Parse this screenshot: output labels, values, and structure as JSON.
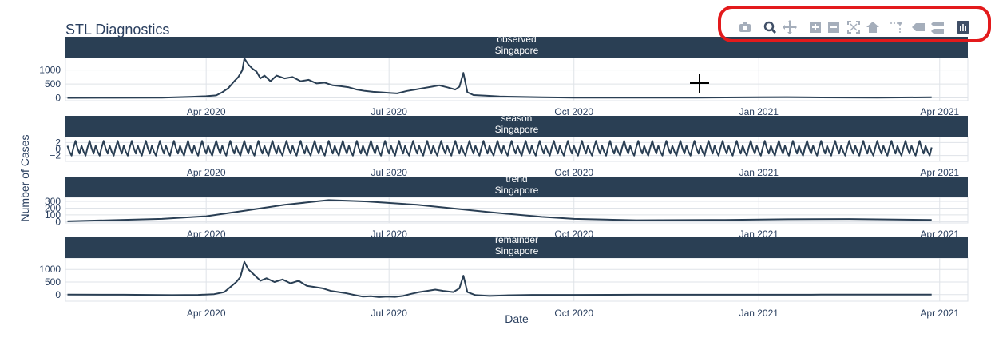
{
  "title": "STL Diagnostics",
  "colors": {
    "strip": "#2a3f54",
    "line": "#2a3f54",
    "grid": "#dfe3e8",
    "text": "#2a3f5f",
    "highlight": "#e31a1c",
    "icon": "#a5aebb",
    "icon_active": "#3f4e66"
  },
  "toolbar": [
    {
      "name": "camera-icon",
      "icon": "camera"
    },
    {
      "name": "zoom-icon",
      "icon": "zoom"
    },
    {
      "name": "pan-icon",
      "icon": "pan"
    },
    {
      "name": "zoom-in-icon",
      "icon": "zoom-in"
    },
    {
      "name": "zoom-out-icon",
      "icon": "zoom-out"
    },
    {
      "name": "autoscale-icon",
      "icon": "autoscale"
    },
    {
      "name": "home-icon",
      "icon": "home"
    },
    {
      "name": "spike-lines-icon",
      "icon": "spike"
    },
    {
      "name": "hover-closest-icon",
      "icon": "hover-closest"
    },
    {
      "name": "hover-compare-icon",
      "icon": "hover-compare"
    },
    {
      "name": "plotly-logo-icon",
      "icon": "logo"
    }
  ],
  "chart_data": {
    "type": "line",
    "title": "STL Diagnostics",
    "xlabel": "Date",
    "ylabel": "Number of Cases",
    "x_tick_labels": [
      "Apr 2020",
      "Jul 2020",
      "Oct 2020",
      "Jan 2021",
      "Apr 2021"
    ],
    "x_tick_dates": [
      "2020-04-01",
      "2020-07-01",
      "2020-10-01",
      "2021-01-01",
      "2021-04-01"
    ],
    "xlim": [
      "2020-01-22",
      "2021-04-15"
    ],
    "grid": true,
    "panels": [
      {
        "component": "observed",
        "country": "Singapore",
        "ylim": [
          -100,
          1450
        ],
        "yticks": [
          0,
          500,
          1000
        ],
        "points": [
          [
            "2020-01-23",
            0
          ],
          [
            "2020-02-15",
            3
          ],
          [
            "2020-03-10",
            10
          ],
          [
            "2020-03-25",
            40
          ],
          [
            "2020-04-01",
            60
          ],
          [
            "2020-04-06",
            90
          ],
          [
            "2020-04-09",
            200
          ],
          [
            "2020-04-12",
            350
          ],
          [
            "2020-04-15",
            600
          ],
          [
            "2020-04-17",
            750
          ],
          [
            "2020-04-19",
            1000
          ],
          [
            "2020-04-20",
            1420
          ],
          [
            "2020-04-22",
            1200
          ],
          [
            "2020-04-24",
            1050
          ],
          [
            "2020-04-26",
            950
          ],
          [
            "2020-04-28",
            700
          ],
          [
            "2020-04-30",
            800
          ],
          [
            "2020-05-03",
            600
          ],
          [
            "2020-05-06",
            800
          ],
          [
            "2020-05-10",
            700
          ],
          [
            "2020-05-14",
            750
          ],
          [
            "2020-05-18",
            600
          ],
          [
            "2020-05-22",
            650
          ],
          [
            "2020-05-26",
            520
          ],
          [
            "2020-05-30",
            550
          ],
          [
            "2020-06-03",
            450
          ],
          [
            "2020-06-07",
            420
          ],
          [
            "2020-06-11",
            380
          ],
          [
            "2020-06-15",
            300
          ],
          [
            "2020-06-19",
            250
          ],
          [
            "2020-06-23",
            220
          ],
          [
            "2020-06-27",
            200
          ],
          [
            "2020-07-01",
            180
          ],
          [
            "2020-07-05",
            160
          ],
          [
            "2020-07-10",
            250
          ],
          [
            "2020-07-14",
            300
          ],
          [
            "2020-07-18",
            350
          ],
          [
            "2020-07-22",
            400
          ],
          [
            "2020-07-26",
            450
          ],
          [
            "2020-07-30",
            380
          ],
          [
            "2020-08-03",
            300
          ],
          [
            "2020-08-05",
            400
          ],
          [
            "2020-08-07",
            900
          ],
          [
            "2020-08-09",
            200
          ],
          [
            "2020-08-12",
            100
          ],
          [
            "2020-08-18",
            80
          ],
          [
            "2020-08-25",
            50
          ],
          [
            "2020-09-01",
            40
          ],
          [
            "2020-09-15",
            20
          ],
          [
            "2020-10-01",
            10
          ],
          [
            "2020-11-01",
            5
          ],
          [
            "2020-12-01",
            10
          ],
          [
            "2021-01-01",
            20
          ],
          [
            "2021-01-15",
            25
          ],
          [
            "2021-02-01",
            15
          ],
          [
            "2021-03-01",
            10
          ],
          [
            "2021-03-28",
            20
          ]
        ]
      },
      {
        "component": "season",
        "country": "Singapore",
        "ylim": [
          -3.8,
          3.8
        ],
        "yticks": [
          -2,
          0,
          2
        ],
        "period_days": 7,
        "pattern": [
          1,
          -0.8,
          -2,
          0.5,
          2.5,
          0.2,
          -1.4
        ],
        "start": "2020-01-23",
        "end": "2021-03-28"
      },
      {
        "component": "trend",
        "country": "Singapore",
        "ylim": [
          -20,
          360
        ],
        "yticks": [
          0,
          100,
          200,
          300
        ],
        "points": [
          [
            "2020-01-23",
            5
          ],
          [
            "2020-03-10",
            40
          ],
          [
            "2020-04-01",
            80
          ],
          [
            "2020-04-20",
            160
          ],
          [
            "2020-05-10",
            250
          ],
          [
            "2020-06-01",
            320
          ],
          [
            "2020-06-20",
            300
          ],
          [
            "2020-07-15",
            250
          ],
          [
            "2020-08-20",
            140
          ],
          [
            "2020-09-15",
            70
          ],
          [
            "2020-10-01",
            40
          ],
          [
            "2020-11-01",
            20
          ],
          [
            "2020-12-15",
            25
          ],
          [
            "2021-01-15",
            35
          ],
          [
            "2021-02-15",
            38
          ],
          [
            "2021-03-28",
            25
          ]
        ]
      },
      {
        "component": "remainder",
        "country": "Singapore",
        "ylim": [
          -260,
          1450
        ],
        "yticks": [
          0,
          500,
          1000
        ],
        "points": [
          [
            "2020-01-23",
            0
          ],
          [
            "2020-02-20",
            -5
          ],
          [
            "2020-03-15",
            -20
          ],
          [
            "2020-03-28",
            -10
          ],
          [
            "2020-04-05",
            20
          ],
          [
            "2020-04-10",
            100
          ],
          [
            "2020-04-13",
            300
          ],
          [
            "2020-04-16",
            500
          ],
          [
            "2020-04-18",
            700
          ],
          [
            "2020-04-20",
            1300
          ],
          [
            "2020-04-22",
            1000
          ],
          [
            "2020-04-24",
            850
          ],
          [
            "2020-04-26",
            700
          ],
          [
            "2020-04-28",
            550
          ],
          [
            "2020-05-01",
            650
          ],
          [
            "2020-05-05",
            500
          ],
          [
            "2020-05-09",
            600
          ],
          [
            "2020-05-13",
            450
          ],
          [
            "2020-05-17",
            550
          ],
          [
            "2020-05-21",
            350
          ],
          [
            "2020-05-25",
            300
          ],
          [
            "2020-05-29",
            250
          ],
          [
            "2020-06-02",
            150
          ],
          [
            "2020-06-06",
            100
          ],
          [
            "2020-06-10",
            50
          ],
          [
            "2020-06-14",
            -20
          ],
          [
            "2020-06-18",
            -80
          ],
          [
            "2020-06-22",
            -60
          ],
          [
            "2020-06-26",
            -100
          ],
          [
            "2020-06-30",
            -80
          ],
          [
            "2020-07-04",
            -90
          ],
          [
            "2020-07-08",
            -50
          ],
          [
            "2020-07-12",
            30
          ],
          [
            "2020-07-16",
            100
          ],
          [
            "2020-07-20",
            150
          ],
          [
            "2020-07-24",
            200
          ],
          [
            "2020-07-28",
            150
          ],
          [
            "2020-08-02",
            100
          ],
          [
            "2020-08-05",
            250
          ],
          [
            "2020-08-07",
            750
          ],
          [
            "2020-08-09",
            100
          ],
          [
            "2020-08-13",
            -20
          ],
          [
            "2020-08-20",
            -50
          ],
          [
            "2020-08-28",
            -30
          ],
          [
            "2020-09-10",
            -10
          ],
          [
            "2020-10-01",
            -10
          ],
          [
            "2020-11-01",
            -5
          ],
          [
            "2020-12-01",
            -5
          ],
          [
            "2021-01-01",
            -5
          ],
          [
            "2021-02-01",
            0
          ],
          [
            "2021-03-28",
            0
          ]
        ]
      }
    ]
  }
}
